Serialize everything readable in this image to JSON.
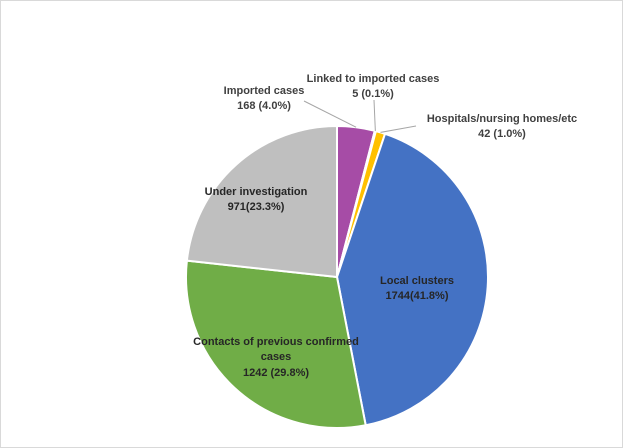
{
  "chart_data": {
    "type": "pie",
    "title": "",
    "start_angle_deg": 0,
    "direction": "clockwise",
    "slices": [
      {
        "name": "Imported cases",
        "value": 168,
        "percent_label": "168 (4.0%)",
        "color": "#a64ca6"
      },
      {
        "name": "Linked to imported cases",
        "value": 5,
        "percent_label": "5 (0.1%)",
        "color": "#ed7d31"
      },
      {
        "name": "Hospitals/nursing  homes/etc",
        "value": 42,
        "percent_label": "42 (1.0%)",
        "color": "#ffc000"
      },
      {
        "name": "Local clusters",
        "value": 1744,
        "percent_label": "1744(41.8%)",
        "color": "#4472c4"
      },
      {
        "name": "Contacts of previous confirmed cases",
        "value": 1242,
        "percent_label": "1242 (29.8%)",
        "color": "#70ad47"
      },
      {
        "name": "Under investigation",
        "value": 971,
        "percent_label": "971(23.3%)",
        "color": "#bfbfbf"
      }
    ],
    "legend": "none",
    "data_labels": "category and value",
    "label_lines": {
      "contacts_line1": "Contacts of previous confirmed",
      "contacts_line2": "cases"
    }
  }
}
